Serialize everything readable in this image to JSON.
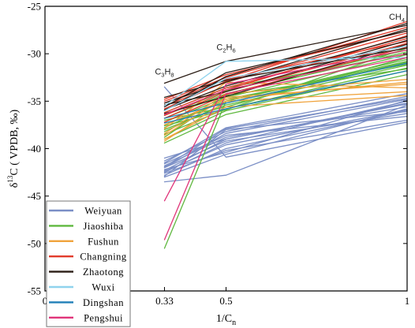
{
  "chart_data": {
    "type": "line",
    "xlabel": "1/C",
    "xlabel_sub": "n",
    "ylabel": "δ13C ( VPDB, ‰)",
    "xlim": [
      0,
      1
    ],
    "ylim": [
      -55,
      -25
    ],
    "x_ticks": [
      {
        "v": 0,
        "label": "0"
      },
      {
        "v": 0.33,
        "label": "0.33"
      },
      {
        "v": 0.5,
        "label": "0.5"
      },
      {
        "v": 1,
        "label": "1"
      }
    ],
    "y_ticks": [
      -55,
      -50,
      -45,
      -40,
      -35,
      -30,
      -25
    ],
    "x": [
      0.33,
      0.5,
      1
    ],
    "annotations": [
      {
        "main": "C",
        "sub1": "3",
        "mid": "H",
        "sub2": "8",
        "x": 0.33,
        "y": -32.2
      },
      {
        "main": "C",
        "sub1": "2",
        "mid": "H",
        "sub2": "6",
        "x": 0.5,
        "y": -29.6
      },
      {
        "main": "CH",
        "sub1": "",
        "mid": "",
        "sub2": "4",
        "x": 1,
        "y": -26.4
      }
    ],
    "legend_position": "bottom-left",
    "series": [
      {
        "name": "Weiyuan",
        "color": "#7b8fc6",
        "lines": [
          [
            -41.5,
            -37.8,
            -34.2
          ],
          [
            -42.0,
            -38.4,
            -34.8
          ],
          [
            -42.3,
            -39.0,
            -35.2
          ],
          [
            -41.8,
            -38.8,
            -35.6
          ],
          [
            -42.5,
            -39.4,
            -35.0
          ],
          [
            -42.8,
            -40.0,
            -36.0
          ],
          [
            -41.3,
            -38.2,
            -34.5
          ],
          [
            -42.0,
            -39.2,
            -36.3
          ],
          [
            -43.0,
            -40.6,
            -35.8
          ],
          [
            -42.6,
            -40.2,
            -37.0
          ],
          [
            -43.5,
            -42.8,
            -35.4
          ],
          [
            -41.9,
            -37.9,
            -34.7
          ],
          [
            -42.4,
            -39.6,
            -35.9
          ],
          [
            -41.6,
            -38.6,
            -36.6
          ],
          [
            -42.2,
            -40.4,
            -34.9
          ],
          [
            -41.0,
            -39.0,
            -35.3
          ],
          [
            -42.9,
            -38.0,
            -36.1
          ],
          [
            -33.5,
            -40.9,
            -37.2
          ]
        ]
      },
      {
        "name": "Jiaoshiba",
        "color": "#5fb83f",
        "lines": [
          [
            -38.0,
            -35.4,
            -31.2
          ],
          [
            -37.5,
            -35.0,
            -30.6
          ],
          [
            -38.5,
            -35.8,
            -31.5
          ],
          [
            -37.2,
            -34.6,
            -30.1
          ],
          [
            -39.0,
            -36.0,
            -31.8
          ],
          [
            -36.8,
            -34.2,
            -29.8
          ],
          [
            -38.2,
            -35.2,
            -30.9
          ],
          [
            -37.8,
            -34.8,
            -31.1
          ],
          [
            -36.5,
            -33.9,
            -29.6
          ],
          [
            -39.4,
            -36.4,
            -32.2
          ],
          [
            -37.0,
            -35.6,
            -30.4
          ],
          [
            -38.8,
            -34.4,
            -31.6
          ],
          [
            -50.5,
            -35.0,
            -30.8
          ],
          [
            -36.2,
            -33.6,
            -30.0
          ],
          [
            -37.6,
            -35.9,
            -29.4
          ]
        ]
      },
      {
        "name": "Fushun",
        "color": "#f0a33c",
        "lines": [
          [
            -38.6,
            -34.6,
            -33.2
          ],
          [
            -39.2,
            -35.0,
            -34.0
          ],
          [
            -37.9,
            -33.0,
            -33.6
          ],
          [
            -38.4,
            -34.2,
            -32.7
          ],
          [
            -39.0,
            -35.6,
            -34.4
          ],
          [
            -37.5,
            -34.8,
            -33.0
          ]
        ]
      },
      {
        "name": "Changning",
        "color": "#e23b2b",
        "lines": [
          [
            -35.5,
            -33.0,
            -27.8
          ],
          [
            -36.2,
            -33.6,
            -28.4
          ],
          [
            -35.0,
            -32.5,
            -27.2
          ],
          [
            -36.8,
            -34.0,
            -28.9
          ],
          [
            -35.8,
            -32.9,
            -26.6
          ],
          [
            -37.2,
            -34.3,
            -29.3
          ],
          [
            -34.8,
            -32.2,
            -27.6
          ],
          [
            -36.5,
            -33.8,
            -28.1
          ],
          [
            -35.2,
            -32.7,
            -28.7
          ]
        ]
      },
      {
        "name": "Zhaotong",
        "color": "#2a1c14",
        "lines": [
          [
            -33.1,
            -30.8,
            -27.0
          ],
          [
            -35.6,
            -32.0,
            -27.6
          ],
          [
            -35.9,
            -33.4,
            -28.2
          ],
          [
            -36.3,
            -34.5,
            -29.0
          ],
          [
            -35.2,
            -33.0,
            -27.4
          ],
          [
            -36.0,
            -32.4,
            -26.8
          ],
          [
            -35.4,
            -34.0,
            -28.6
          ],
          [
            -34.6,
            -32.8,
            -29.4
          ]
        ]
      },
      {
        "name": "Wuxi",
        "color": "#8fd3ee",
        "lines": [
          [
            -35.5,
            -30.8,
            -30.4
          ],
          [
            -36.0,
            -32.6,
            -29.2
          ]
        ]
      },
      {
        "name": "Dingshan",
        "color": "#1f7fb8",
        "lines": [
          [
            -36.8,
            -35.2,
            -31.0
          ],
          [
            -37.3,
            -35.8,
            -31.8
          ]
        ]
      },
      {
        "name": "Pengshui",
        "color": "#e0347a",
        "lines": [
          [
            -45.5,
            -33.2,
            -29.6
          ],
          [
            -49.6,
            -34.2,
            -30.4
          ],
          [
            -36.4,
            -33.8,
            -30.0
          ]
        ]
      }
    ]
  }
}
